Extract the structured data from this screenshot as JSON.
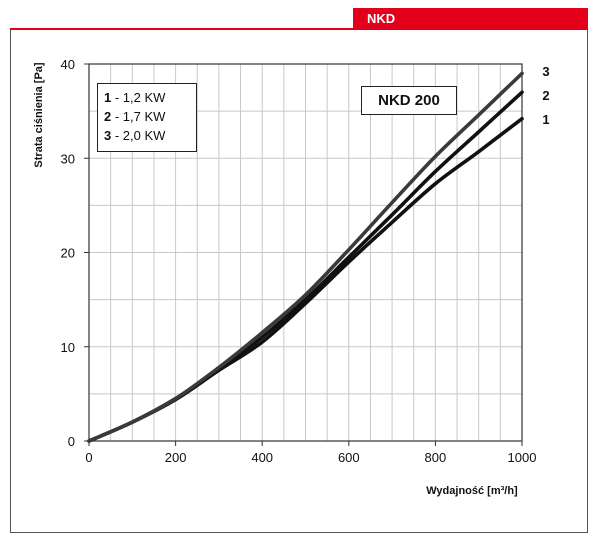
{
  "header": {
    "tag": "NKD"
  },
  "chart_data": {
    "type": "line",
    "title": "NKD 200",
    "xlabel": "Wydajność [m³/h]",
    "ylabel": "Strata ciśnienia [Pa]",
    "xlim": [
      0,
      1000
    ],
    "ylim": [
      0,
      40
    ],
    "x_ticks": [
      0,
      200,
      400,
      600,
      800,
      1000
    ],
    "y_ticks": [
      0,
      10,
      20,
      30,
      40
    ],
    "grid": true,
    "legend_position": "top-left",
    "legend": [
      {
        "num": "1",
        "text": " - 1,2 KW"
      },
      {
        "num": "2",
        "text": " - 1,7 KW"
      },
      {
        "num": "3",
        "text": " - 2,0 KW"
      }
    ],
    "x": [
      0,
      100,
      200,
      300,
      400,
      500,
      600,
      700,
      800,
      900,
      1000
    ],
    "series": [
      {
        "name": "1",
        "color": "#111111",
        "values": [
          0,
          2.0,
          4.4,
          7.5,
          10.5,
          14.6,
          19.0,
          23.2,
          27.3,
          30.7,
          34.2
        ]
      },
      {
        "name": "2",
        "color": "#111111",
        "values": [
          0,
          2.0,
          4.5,
          7.6,
          11.0,
          15.0,
          19.5,
          24.0,
          28.6,
          32.8,
          37.0
        ]
      },
      {
        "name": "3",
        "color": "#3a3a3a",
        "values": [
          0,
          2.0,
          4.5,
          7.8,
          11.5,
          15.5,
          20.3,
          25.3,
          30.2,
          34.6,
          39.0
        ]
      }
    ]
  }
}
